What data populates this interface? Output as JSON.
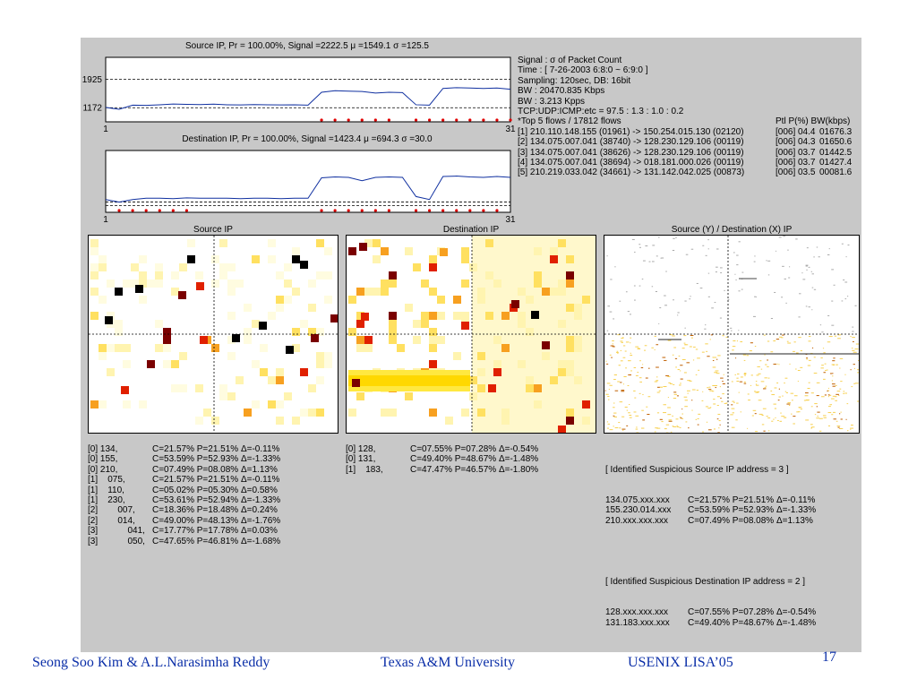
{
  "chart_data": [
    {
      "type": "line",
      "title": "Source IP, Pr = 100.00%, Signal =2222.5  μ =1549.1  σ =125.5",
      "x": [
        1,
        2,
        3,
        4,
        5,
        6,
        7,
        8,
        9,
        10,
        11,
        12,
        13,
        14,
        15,
        16,
        17,
        18,
        19,
        20,
        21,
        22,
        23,
        24,
        25,
        26,
        27,
        28,
        29,
        30,
        31
      ],
      "values": [
        1180,
        1130,
        1240,
        1235,
        1250,
        1270,
        1260,
        1255,
        1265,
        1250,
        1245,
        1255,
        1250,
        1245,
        1250,
        1240,
        1580,
        1620,
        1610,
        1600,
        1560,
        1580,
        1570,
        1250,
        1240,
        1680,
        1700,
        1690,
        1680,
        1690,
        1660
      ],
      "thresholds": [
        1925,
        1172
      ],
      "ytick_labels": [
        "1925",
        "1172"
      ],
      "xtick_labels": [
        "1",
        "31"
      ],
      "xlim": [
        1,
        31
      ],
      "ylim": [
        800,
        2500
      ],
      "alarm_points": [
        17,
        18,
        19,
        20,
        21,
        22,
        24,
        25,
        26,
        27,
        28,
        29,
        30,
        31
      ]
    },
    {
      "type": "line",
      "title": "Destination IP, Pr = 100.00%, Signal =1423.4  μ =694.3  σ =30.0",
      "x": [
        1,
        2,
        3,
        4,
        5,
        6,
        7,
        8,
        9,
        10,
        11,
        12,
        13,
        14,
        15,
        16,
        17,
        18,
        19,
        20,
        21,
        22,
        23,
        24,
        25,
        26,
        27,
        28,
        29,
        30,
        31
      ],
      "values": [
        300,
        240,
        300,
        330,
        330,
        320,
        340,
        330,
        330,
        330,
        320,
        330,
        330,
        320,
        330,
        330,
        810,
        830,
        820,
        740,
        820,
        830,
        820,
        370,
        300,
        840,
        850,
        830,
        820,
        840,
        820
      ],
      "thresholds": [
        240,
        160
      ],
      "xtick_labels": [
        "1",
        "31"
      ],
      "xlim": [
        1,
        31
      ],
      "ylim": [
        0,
        1450
      ],
      "alarm_points": [
        2,
        3,
        4,
        5,
        6,
        7,
        17,
        18,
        19,
        20,
        21,
        22,
        24,
        25,
        26,
        27,
        28,
        29,
        30
      ]
    },
    {
      "type": "heatmap",
      "title": "Source IP"
    },
    {
      "type": "heatmap",
      "title": "Destination IP"
    },
    {
      "type": "heatmap",
      "title": "Source (Y) / Destination (X) IP"
    }
  ],
  "info": {
    "lines": [
      "Signal : σ of Packet Count",
      "Time  : [ 7-26-2003  6:8:0 ~ 6:9:0 ]",
      "Sampling: 120sec, DB: 16bit",
      "BW : 20470.835 Kbps",
      "BW : 3.213 Kpps",
      "TCP:UDP:ICMP:etc = 97.5 : 1.3 : 1.0 : 0.2"
    ],
    "flows_header": "*Top 5 flows / 17812 flows",
    "flows_cols": "Ptl  P(%) BW(kbps)",
    "flows": [
      {
        "desc": "[1] 210.110.148.155 (01961) -> 150.254.015.130 (02120)",
        "ptl": "[006]",
        "p": "04.4",
        "bw": "01676.3"
      },
      {
        "desc": "[2] 134.075.007.041 (38740) -> 128.230.129.106 (00119)",
        "ptl": "[006]",
        "p": "04.3",
        "bw": "01650.6"
      },
      {
        "desc": "[3] 134.075.007.041 (38626) -> 128.230.129.106 (00119)",
        "ptl": "[006]",
        "p": "03.7",
        "bw": "01442.5"
      },
      {
        "desc": "[4] 134.075.007.041 (38694) -> 018.181.000.026 (00119)",
        "ptl": "[006]",
        "p": "03.7",
        "bw": "01427.4"
      },
      {
        "desc": "[5] 210.219.033.042 (34661) -> 131.142.042.025 (00873)",
        "ptl": "[006]",
        "p": "03.5",
        "bw": "00081.6"
      }
    ]
  },
  "source_stats": [
    {
      "idx": "[0] 134,",
      "c": "C=21.57% P=21.51% Δ=-0.11%"
    },
    {
      "idx": "[0] 155,",
      "c": "C=53.59% P=52.93% Δ=-1.33%"
    },
    {
      "idx": "[0] 210,",
      "c": "C=07.49% P=08.08% Δ=1.13%"
    },
    {
      "idx": "[1]    075,",
      "c": "C=21.57% P=21.51% Δ=-0.11%"
    },
    {
      "idx": "[1]    110,",
      "c": "C=05.02% P=05.30% Δ=0.58%"
    },
    {
      "idx": "[1]    230,",
      "c": "C=53.61% P=52.94% Δ=-1.33%"
    },
    {
      "idx": "[2]        007,",
      "c": "C=18.36% P=18.48% Δ=0.24%"
    },
    {
      "idx": "[2]        014,",
      "c": "C=49.00% P=48.13% Δ=-1.76%"
    },
    {
      "idx": "[3]            041,",
      "c": "C=17.77% P=17.78% Δ=0.03%"
    },
    {
      "idx": "[3]            050,",
      "c": "C=47.65% P=46.81% Δ=-1.68%"
    }
  ],
  "dest_stats": [
    {
      "idx": "[0] 128,",
      "c": "C=07.55% P=07.28% Δ=-0.54%"
    },
    {
      "idx": "[0] 131,",
      "c": "C=49.40% P=48.67% Δ=-1.48%"
    },
    {
      "idx": "[1]    183,",
      "c": "C=47.47% P=46.57% Δ=-1.80%"
    }
  ],
  "suspicious": {
    "src_header": "[ Identified Suspicious Source IP address = 3 ]",
    "src": [
      {
        "ip": "134.075.xxx.xxx",
        "c": "C=21.57% P=21.51% Δ=-0.11%"
      },
      {
        "ip": "155.230.014.xxx",
        "c": "C=53.59% P=52.93% Δ=-1.33%"
      },
      {
        "ip": "210.xxx.xxx.xxx",
        "c": "C=07.49% P=08.08% Δ=1.13%"
      }
    ],
    "dst_header": "[ Identified Suspicious Destination IP address = 2 ]",
    "dst": [
      {
        "ip": "128.xxx.xxx.xxx",
        "c": "C=07.55% P=07.28% Δ=-0.54%"
      },
      {
        "ip": "131.183.xxx.xxx",
        "c": "C=49.40% P=48.67% Δ=-1.48%"
      }
    ]
  },
  "footer": {
    "authors": "Seong Soo Kim & A.L.Narasimha Reddy",
    "university": "Texas A&M University",
    "conference": "USENIX LISA’05",
    "page": "17"
  },
  "colors": {
    "line": "#1030a0",
    "alarm": "#e00000",
    "panel_bg": "#c8c8c8",
    "footer_text": "#0b2fa8"
  }
}
